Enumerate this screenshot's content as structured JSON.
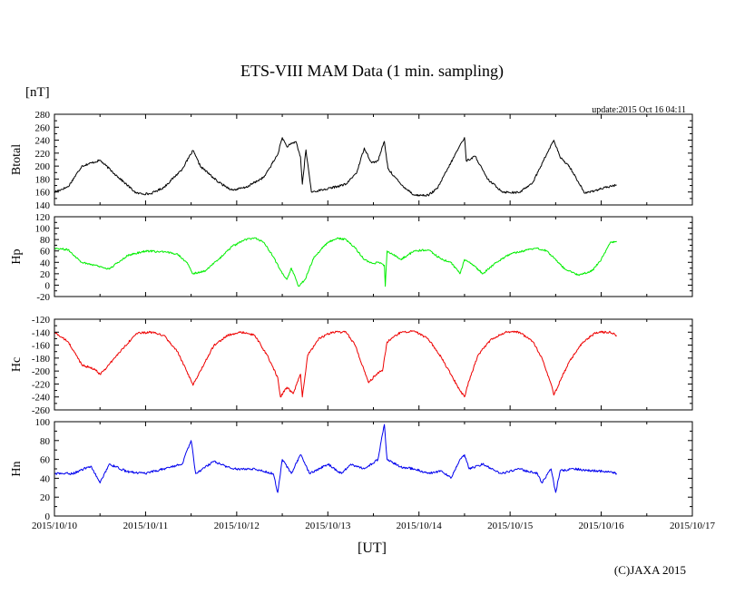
{
  "chart_data": {
    "type": "line",
    "title": "ETS-VIII MAM Data (1 min. sampling)",
    "unit_label": "[nT]",
    "update_text": "update:2015 Oct 16 04:11",
    "xlabel": "[UT]",
    "copyright": "(C)JAXA 2015",
    "x_ticks": [
      "2015/10/10",
      "2015/10/11",
      "2015/10/12",
      "2015/10/13",
      "2015/10/14",
      "2015/10/15",
      "2015/10/16",
      "2015/10/17"
    ],
    "x_range_days": [
      0,
      7
    ],
    "data_end_day": 6.17,
    "panels": [
      {
        "name": "Btotal",
        "color": "#000000",
        "ylim": [
          140,
          280
        ],
        "yticks": [
          "280",
          "260",
          "240",
          "220",
          "200",
          "180",
          "160",
          "140"
        ],
        "points": [
          [
            0.0,
            160
          ],
          [
            0.15,
            168
          ],
          [
            0.3,
            200
          ],
          [
            0.5,
            209
          ],
          [
            0.7,
            183
          ],
          [
            0.9,
            158
          ],
          [
            1.05,
            157
          ],
          [
            1.2,
            167
          ],
          [
            1.4,
            195
          ],
          [
            1.52,
            224
          ],
          [
            1.6,
            200
          ],
          [
            1.8,
            175
          ],
          [
            1.95,
            163
          ],
          [
            2.1,
            167
          ],
          [
            2.3,
            183
          ],
          [
            2.45,
            218
          ],
          [
            2.5,
            244
          ],
          [
            2.55,
            230
          ],
          [
            2.65,
            238
          ],
          [
            2.7,
            214
          ],
          [
            2.72,
            172
          ],
          [
            2.76,
            225
          ],
          [
            2.82,
            160
          ],
          [
            3.0,
            165
          ],
          [
            3.2,
            172
          ],
          [
            3.32,
            191
          ],
          [
            3.4,
            228
          ],
          [
            3.48,
            205
          ],
          [
            3.55,
            208
          ],
          [
            3.62,
            238
          ],
          [
            3.66,
            196
          ],
          [
            3.8,
            172
          ],
          [
            3.95,
            155
          ],
          [
            4.1,
            155
          ],
          [
            4.2,
            165
          ],
          [
            4.35,
            205
          ],
          [
            4.45,
            232
          ],
          [
            4.5,
            244
          ],
          [
            4.52,
            208
          ],
          [
            4.62,
            215
          ],
          [
            4.75,
            180
          ],
          [
            4.92,
            160
          ],
          [
            5.1,
            159
          ],
          [
            5.25,
            175
          ],
          [
            5.4,
            218
          ],
          [
            5.48,
            240
          ],
          [
            5.55,
            213
          ],
          [
            5.65,
            200
          ],
          [
            5.82,
            158
          ],
          [
            6.0,
            165
          ],
          [
            6.17,
            171
          ]
        ]
      },
      {
        "name": "Hp",
        "color": "#00ee00",
        "ylim": [
          -20,
          120
        ],
        "yticks": [
          "120",
          "100",
          "80",
          "60",
          "40",
          "20",
          "0",
          "-20"
        ],
        "points": [
          [
            0.0,
            65
          ],
          [
            0.15,
            62
          ],
          [
            0.3,
            40
          ],
          [
            0.45,
            35
          ],
          [
            0.6,
            28
          ],
          [
            0.8,
            52
          ],
          [
            1.0,
            60
          ],
          [
            1.2,
            58
          ],
          [
            1.35,
            55
          ],
          [
            1.45,
            40
          ],
          [
            1.52,
            20
          ],
          [
            1.65,
            25
          ],
          [
            1.8,
            45
          ],
          [
            1.95,
            68
          ],
          [
            2.1,
            80
          ],
          [
            2.2,
            83
          ],
          [
            2.3,
            75
          ],
          [
            2.4,
            50
          ],
          [
            2.5,
            20
          ],
          [
            2.55,
            10
          ],
          [
            2.6,
            30
          ],
          [
            2.68,
            -2
          ],
          [
            2.75,
            10
          ],
          [
            2.85,
            50
          ],
          [
            3.0,
            75
          ],
          [
            3.1,
            82
          ],
          [
            3.2,
            80
          ],
          [
            3.3,
            65
          ],
          [
            3.4,
            45
          ],
          [
            3.5,
            38
          ],
          [
            3.55,
            40
          ],
          [
            3.62,
            35
          ],
          [
            3.63,
            -2
          ],
          [
            3.65,
            60
          ],
          [
            3.8,
            45
          ],
          [
            3.95,
            60
          ],
          [
            4.1,
            62
          ],
          [
            4.25,
            45
          ],
          [
            4.35,
            40
          ],
          [
            4.45,
            20
          ],
          [
            4.5,
            45
          ],
          [
            4.6,
            35
          ],
          [
            4.7,
            20
          ],
          [
            4.85,
            40
          ],
          [
            5.0,
            55
          ],
          [
            5.2,
            62
          ],
          [
            5.3,
            65
          ],
          [
            5.4,
            60
          ],
          [
            5.5,
            45
          ],
          [
            5.6,
            28
          ],
          [
            5.75,
            18
          ],
          [
            5.9,
            25
          ],
          [
            6.0,
            45
          ],
          [
            6.1,
            75
          ],
          [
            6.17,
            77
          ]
        ]
      },
      {
        "name": "Hc",
        "color": "#ee0000",
        "ylim": [
          -260,
          -120
        ],
        "yticks": [
          "-120",
          "-140",
          "-160",
          "-180",
          "-200",
          "-220",
          "-240",
          "-260"
        ],
        "points": [
          [
            0.0,
            -140
          ],
          [
            0.15,
            -155
          ],
          [
            0.3,
            -190
          ],
          [
            0.45,
            -198
          ],
          [
            0.5,
            -205
          ],
          [
            0.6,
            -190
          ],
          [
            0.75,
            -165
          ],
          [
            0.9,
            -142
          ],
          [
            1.05,
            -140
          ],
          [
            1.2,
            -145
          ],
          [
            1.35,
            -170
          ],
          [
            1.45,
            -200
          ],
          [
            1.52,
            -222
          ],
          [
            1.6,
            -200
          ],
          [
            1.75,
            -160
          ],
          [
            1.9,
            -145
          ],
          [
            2.05,
            -140
          ],
          [
            2.2,
            -145
          ],
          [
            2.35,
            -180
          ],
          [
            2.45,
            -210
          ],
          [
            2.48,
            -240
          ],
          [
            2.55,
            -225
          ],
          [
            2.62,
            -235
          ],
          [
            2.7,
            -205
          ],
          [
            2.72,
            -240
          ],
          [
            2.78,
            -175
          ],
          [
            2.9,
            -150
          ],
          [
            3.05,
            -140
          ],
          [
            3.2,
            -140
          ],
          [
            3.3,
            -160
          ],
          [
            3.4,
            -200
          ],
          [
            3.45,
            -218
          ],
          [
            3.55,
            -202
          ],
          [
            3.6,
            -200
          ],
          [
            3.65,
            -155
          ],
          [
            3.8,
            -140
          ],
          [
            3.95,
            -138
          ],
          [
            4.1,
            -150
          ],
          [
            4.25,
            -180
          ],
          [
            4.35,
            -205
          ],
          [
            4.45,
            -230
          ],
          [
            4.5,
            -240
          ],
          [
            4.55,
            -215
          ],
          [
            4.65,
            -175
          ],
          [
            4.8,
            -150
          ],
          [
            4.95,
            -140
          ],
          [
            5.1,
            -140
          ],
          [
            5.25,
            -155
          ],
          [
            5.35,
            -180
          ],
          [
            5.45,
            -220
          ],
          [
            5.48,
            -237
          ],
          [
            5.55,
            -215
          ],
          [
            5.65,
            -185
          ],
          [
            5.8,
            -155
          ],
          [
            5.95,
            -140
          ],
          [
            6.1,
            -140
          ],
          [
            6.17,
            -145
          ]
        ]
      },
      {
        "name": "Hn",
        "color": "#0000ee",
        "ylim": [
          0,
          100
        ],
        "yticks": [
          "100",
          "80",
          "60",
          "40",
          "20",
          "0"
        ],
        "points": [
          [
            0.0,
            45
          ],
          [
            0.2,
            45
          ],
          [
            0.4,
            53
          ],
          [
            0.5,
            35
          ],
          [
            0.6,
            55
          ],
          [
            0.8,
            47
          ],
          [
            1.0,
            45
          ],
          [
            1.2,
            50
          ],
          [
            1.4,
            55
          ],
          [
            1.5,
            80
          ],
          [
            1.55,
            45
          ],
          [
            1.75,
            58
          ],
          [
            1.95,
            50
          ],
          [
            2.2,
            50
          ],
          [
            2.4,
            45
          ],
          [
            2.45,
            25
          ],
          [
            2.5,
            60
          ],
          [
            2.6,
            45
          ],
          [
            2.7,
            65
          ],
          [
            2.8,
            45
          ],
          [
            3.0,
            55
          ],
          [
            3.15,
            45
          ],
          [
            3.25,
            55
          ],
          [
            3.4,
            50
          ],
          [
            3.55,
            60
          ],
          [
            3.62,
            97
          ],
          [
            3.65,
            60
          ],
          [
            3.8,
            52
          ],
          [
            3.95,
            50
          ],
          [
            4.1,
            45
          ],
          [
            4.25,
            48
          ],
          [
            4.35,
            40
          ],
          [
            4.45,
            60
          ],
          [
            4.5,
            65
          ],
          [
            4.55,
            50
          ],
          [
            4.7,
            55
          ],
          [
            4.9,
            45
          ],
          [
            5.1,
            50
          ],
          [
            5.3,
            45
          ],
          [
            5.35,
            35
          ],
          [
            5.45,
            50
          ],
          [
            5.5,
            25
          ],
          [
            5.55,
            48
          ],
          [
            5.7,
            50
          ],
          [
            5.9,
            48
          ],
          [
            6.1,
            47
          ],
          [
            6.17,
            45
          ]
        ]
      }
    ]
  }
}
